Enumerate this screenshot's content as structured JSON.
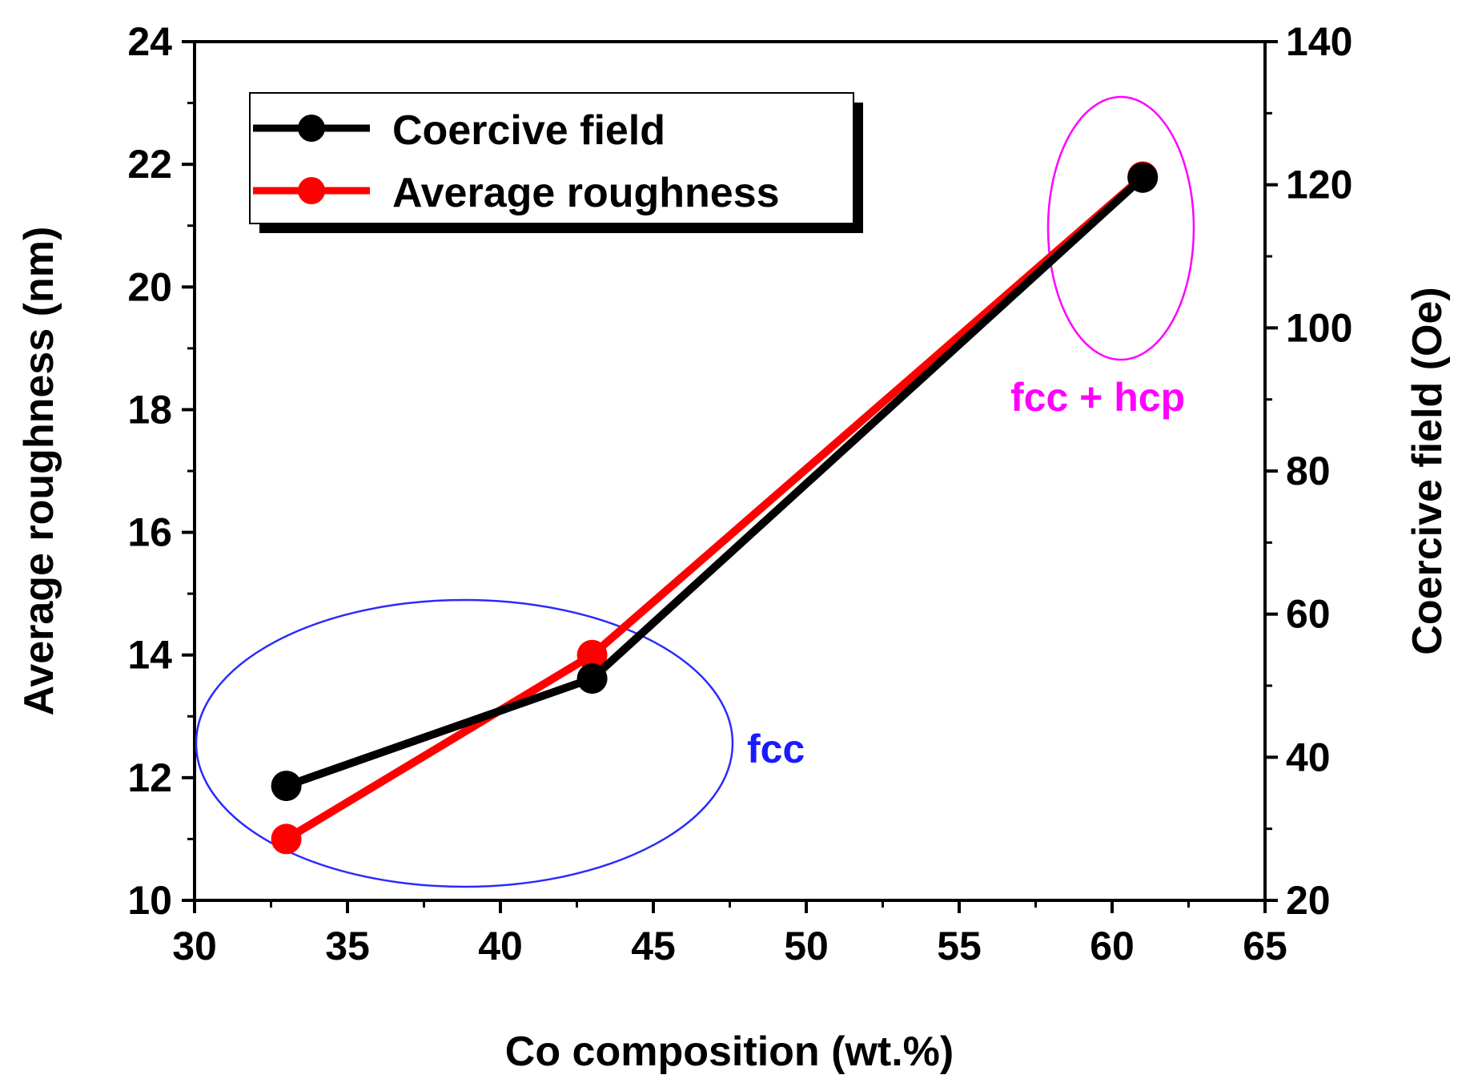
{
  "chart_data": {
    "type": "line",
    "xlabel": "Co composition (wt.%)",
    "ylabel_left": "Average roughness (nm)",
    "ylabel_right": "Coercive field (Oe)",
    "xlim": [
      30,
      65
    ],
    "ylim_left": [
      10,
      24
    ],
    "ylim_right": [
      20,
      140
    ],
    "xticks": [
      30,
      35,
      40,
      45,
      50,
      55,
      60,
      65
    ],
    "yticks_left": [
      10,
      12,
      14,
      16,
      18,
      20,
      22,
      24
    ],
    "yticks_right": [
      20,
      40,
      60,
      80,
      100,
      120,
      140
    ],
    "series": [
      {
        "name": "Coercive field",
        "axis": "right",
        "color": "#000000",
        "x": [
          33,
          43,
          61
        ],
        "values": [
          36,
          51,
          121
        ]
      },
      {
        "name": "Average roughness",
        "axis": "left",
        "color": "#ff0000",
        "x": [
          33,
          43,
          61
        ],
        "values": [
          11.0,
          14.0,
          21.8
        ]
      }
    ],
    "annotations": [
      {
        "text": "fcc",
        "color": "#1a1aff",
        "x": 50,
        "y_left": 12.5
      },
      {
        "text": "fcc + hcp",
        "color": "#ff00ff",
        "x": 60,
        "y_left": 18.2
      }
    ],
    "legend": "top-left"
  }
}
